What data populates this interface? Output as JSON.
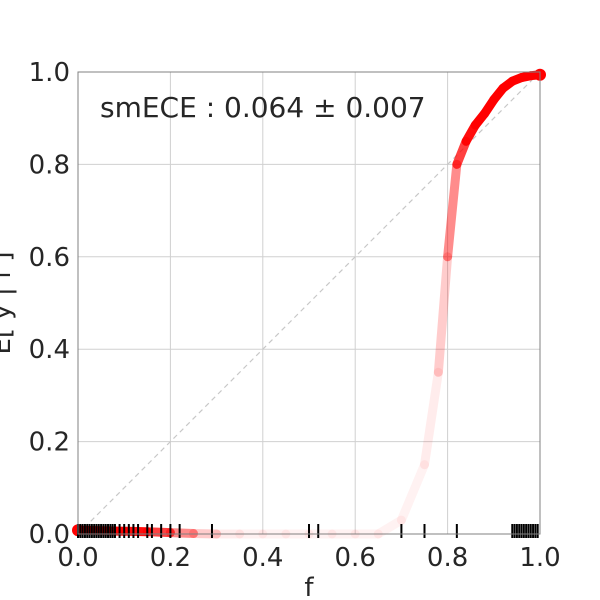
{
  "chart_data": {
    "type": "line",
    "title": "",
    "xlabel": "f",
    "ylabel": "E[ y | f ]",
    "xlim": [
      0.0,
      1.0
    ],
    "ylim": [
      0.0,
      1.0
    ],
    "xticks": [
      "0.0",
      "0.2",
      "0.4",
      "0.6",
      "0.8",
      "1.0"
    ],
    "yticks": [
      "0.0",
      "0.2",
      "0.4",
      "0.6",
      "0.8",
      "1.0"
    ],
    "grid": true,
    "annotation": "smECE : 0.064 ± 0.007",
    "reference_line": {
      "x": [
        0.0,
        1.0
      ],
      "y": [
        0.0,
        1.0
      ],
      "style": "dashed",
      "color": "#c8c8c8"
    },
    "series": [
      {
        "color": "#ff0000",
        "x": [
          0.0,
          0.05,
          0.1,
          0.15,
          0.2,
          0.25,
          0.3,
          0.35,
          0.4,
          0.45,
          0.5,
          0.55,
          0.6,
          0.65,
          0.7,
          0.75,
          0.78,
          0.8,
          0.82,
          0.84,
          0.86,
          0.88,
          0.9,
          0.92,
          0.94,
          0.96,
          0.98,
          1.0
        ],
        "y": [
          0.008,
          0.007,
          0.006,
          0.005,
          0.003,
          0.001,
          0.0,
          0.0,
          0.0,
          0.0,
          0.0,
          0.0,
          0.0,
          0.0,
          0.03,
          0.15,
          0.35,
          0.6,
          0.8,
          0.85,
          0.885,
          0.91,
          0.94,
          0.965,
          0.98,
          0.988,
          0.992,
          0.994
        ],
        "opacity": [
          1,
          1,
          1,
          0.9,
          0.6,
          0.3,
          0.1,
          0.05,
          0.05,
          0.05,
          0.05,
          0.05,
          0.05,
          0.05,
          0.05,
          0.05,
          0.1,
          0.3,
          0.6,
          0.9,
          1,
          1,
          1,
          1,
          1,
          1,
          1,
          1
        ]
      }
    ],
    "rug_x": [
      0.0,
      0.005,
      0.01,
      0.015,
      0.02,
      0.025,
      0.03,
      0.035,
      0.04,
      0.045,
      0.05,
      0.055,
      0.06,
      0.065,
      0.07,
      0.075,
      0.08,
      0.09,
      0.1,
      0.11,
      0.12,
      0.13,
      0.15,
      0.16,
      0.18,
      0.2,
      0.22,
      0.29,
      0.5,
      0.52,
      0.7,
      0.75,
      0.82,
      0.94,
      0.945,
      0.95,
      0.955,
      0.96,
      0.965,
      0.97,
      0.975,
      0.98,
      0.985,
      0.99,
      0.995
    ]
  }
}
